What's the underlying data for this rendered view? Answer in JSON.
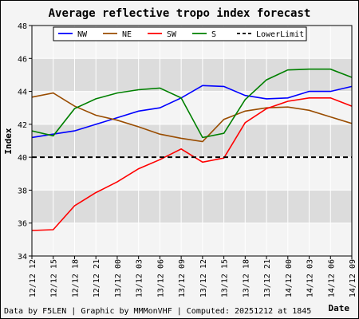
{
  "chart_data": {
    "type": "line",
    "title": "Average reflective tropo index forecast",
    "xlabel": "Date",
    "ylabel": "Index",
    "ylim": [
      34,
      48
    ],
    "yticks": [
      "34",
      "36",
      "38",
      "40",
      "42",
      "44",
      "46",
      "48"
    ],
    "grid": true,
    "legend_position": "top",
    "categories": [
      "12/12 12",
      "12/12 15",
      "12/12 18",
      "12/12 21",
      "13/12 00",
      "13/12 03",
      "13/12 06",
      "13/12 09",
      "13/12 12",
      "13/12 15",
      "13/12 18",
      "13/12 21",
      "14/12 00",
      "14/12 03",
      "14/12 06",
      "14/12 09"
    ],
    "series": [
      {
        "name": "NW",
        "color": "#0000ff",
        "dashed": false,
        "values": [
          41.2,
          41.4,
          41.6,
          42.0,
          42.4,
          42.8,
          43.0,
          43.6,
          44.35,
          44.3,
          43.75,
          43.55,
          43.6,
          44.0,
          44.0,
          44.3
        ]
      },
      {
        "name": "NE",
        "color": "#994c00",
        "dashed": false,
        "values": [
          43.65,
          43.9,
          43.1,
          42.55,
          42.25,
          41.85,
          41.4,
          41.15,
          40.95,
          42.3,
          42.8,
          43.0,
          43.05,
          42.85,
          42.45,
          42.05
        ]
      },
      {
        "name": "SW",
        "color": "#ff0000",
        "dashed": false,
        "values": [
          35.55,
          35.6,
          37.05,
          37.85,
          38.5,
          39.3,
          39.85,
          40.5,
          39.7,
          39.95,
          42.1,
          42.95,
          43.4,
          43.6,
          43.6,
          43.1
        ]
      },
      {
        "name": "S",
        "color": "#008000",
        "dashed": false,
        "values": [
          41.6,
          41.3,
          42.95,
          43.55,
          43.9,
          44.1,
          44.2,
          43.6,
          41.2,
          41.45,
          43.5,
          44.7,
          45.3,
          45.35,
          45.35,
          44.85
        ]
      },
      {
        "name": "LowerLimit",
        "color": "#000000",
        "dashed": true,
        "values": [
          40,
          40,
          40,
          40,
          40,
          40,
          40,
          40,
          40,
          40,
          40,
          40,
          40,
          40,
          40,
          40
        ]
      }
    ]
  },
  "footer": {
    "credits": "Data by F5LEN | Graphic by MMMonVHF | Computed: 20251212 at 1845"
  }
}
